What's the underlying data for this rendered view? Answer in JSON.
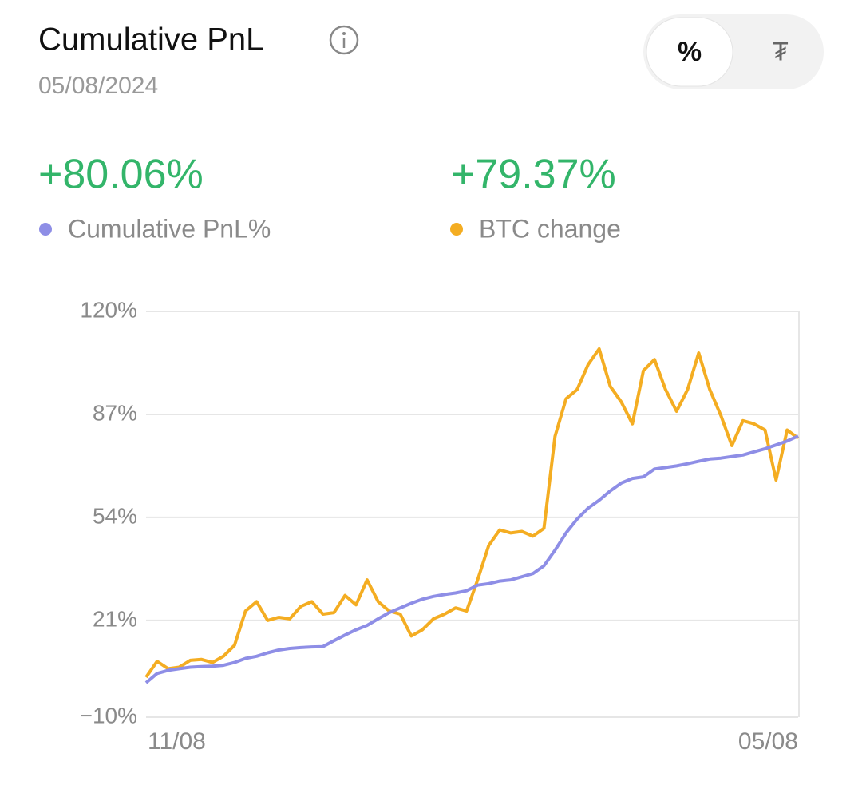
{
  "header": {
    "title": "Cumulative PnL",
    "date": "05/08/2024",
    "toggle": [
      "%",
      "₮"
    ]
  },
  "summary": [
    "+80.06%",
    "+79.37%"
  ],
  "chart_data": {
    "type": "line",
    "categories": [
      "11/08",
      null,
      null,
      null,
      null,
      null,
      null,
      null,
      null,
      null,
      null,
      null,
      null,
      null,
      null,
      null,
      null,
      null,
      null,
      null,
      null,
      null,
      null,
      null,
      null,
      null,
      null,
      null,
      null,
      null,
      null,
      null,
      null,
      null,
      null,
      null,
      null,
      null,
      null,
      null,
      null,
      null,
      null,
      null,
      null,
      null,
      null,
      null,
      null,
      null,
      null,
      null,
      null,
      null,
      null,
      null,
      null,
      null,
      null,
      "05/08"
    ],
    "series": [
      {
        "name": "Cumulative PnL%",
        "color": "#8e8ee6",
        "values": [
          1,
          4,
          5,
          5.5,
          6,
          6.2,
          6.3,
          6.6,
          7.5,
          8.8,
          9.5,
          10.6,
          11.5,
          12,
          12.3,
          12.5,
          12.6,
          14.5,
          16.3,
          18,
          19.4,
          21.5,
          23.5,
          25,
          26.5,
          27.8,
          28.7,
          29.3,
          29.8,
          30.5,
          32.3,
          32.8,
          33.6,
          34,
          35,
          36,
          38.5,
          43.5,
          49,
          53.5,
          57,
          59.5,
          62.5,
          65,
          66.5,
          67,
          69.5,
          70,
          70.5,
          71.2,
          72,
          72.7,
          73,
          73.5,
          74,
          75,
          76,
          77.2,
          78.5,
          80.06
        ]
      },
      {
        "name": "BTC change",
        "color": "#f4ad22",
        "values": [
          2.8,
          7.9,
          5.5,
          6,
          8.2,
          8.5,
          7.5,
          9.5,
          13,
          24,
          27,
          21,
          22,
          21.5,
          25.5,
          27,
          23,
          23.5,
          29,
          26,
          34,
          27,
          24,
          23,
          16,
          18,
          21.5,
          23,
          25,
          24,
          34,
          45,
          50,
          49,
          49.5,
          48,
          50.5,
          80,
          92,
          95,
          103,
          108,
          96,
          91,
          84,
          101,
          104.6,
          95,
          88,
          95,
          106.7,
          95,
          86.7,
          77,
          85,
          84,
          82,
          66,
          82,
          79.37
        ]
      }
    ],
    "ylim": [
      -10,
      120
    ],
    "yticks": [
      {
        "value": -10,
        "label": "−10%"
      },
      {
        "value": 21,
        "label": "21%"
      },
      {
        "value": 54,
        "label": "54%"
      },
      {
        "value": 87,
        "label": "87%"
      },
      {
        "value": 120,
        "label": "120%"
      }
    ],
    "grid": true
  }
}
